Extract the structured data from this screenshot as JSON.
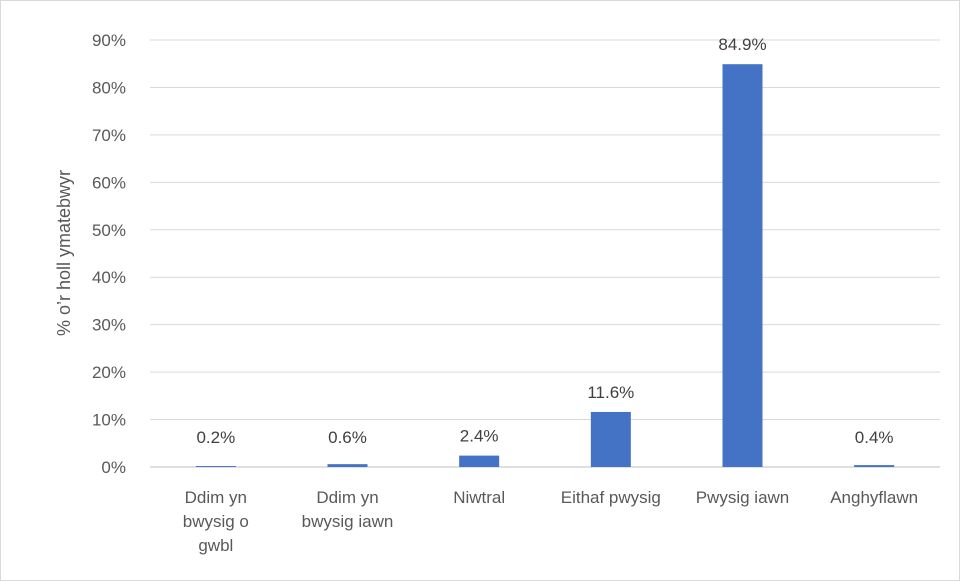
{
  "chart_data": {
    "type": "bar",
    "categories": [
      [
        "Ddim yn",
        "bwysig o",
        "gwbl"
      ],
      [
        "Ddim yn",
        "bwysig iawn"
      ],
      [
        "Niwtral"
      ],
      [
        "Eithaf pwysig"
      ],
      [
        "Pwysig iawn"
      ],
      [
        "Anghyflawn"
      ]
    ],
    "values": [
      0.2,
      0.6,
      2.4,
      11.6,
      84.9,
      0.4
    ],
    "data_labels": [
      "0.2%",
      "0.6%",
      "2.4%",
      "11.6%",
      "84.9%",
      "0.4%"
    ],
    "ylabel": "% o’r holl ymatebwyr",
    "ylim": [
      0,
      90
    ],
    "yticks": [
      0,
      10,
      20,
      30,
      40,
      50,
      60,
      70,
      80,
      90
    ],
    "ytick_labels": [
      "0%",
      "10%",
      "20%",
      "30%",
      "40%",
      "50%",
      "60%",
      "70%",
      "80%",
      "90%"
    ],
    "grid": true,
    "bar_color": "#4472c4",
    "grid_color": "#d9d9d9"
  }
}
